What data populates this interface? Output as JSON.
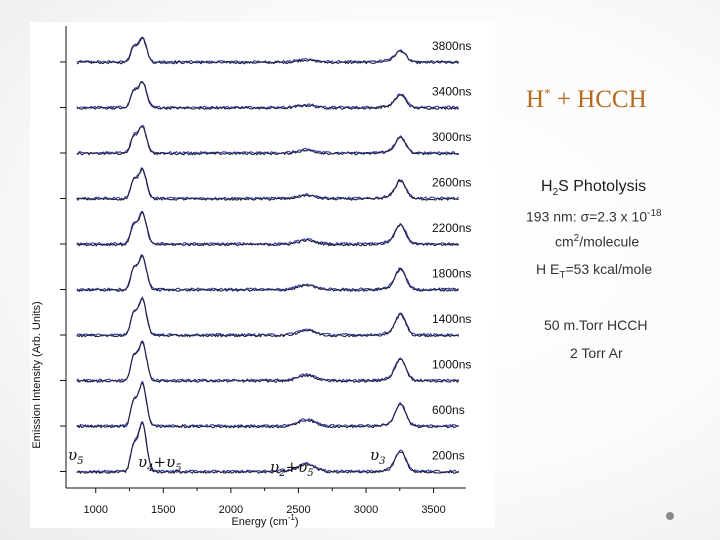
{
  "slide": {
    "title_main": "H",
    "title_sup": "*",
    "title_rest": " + HCCH",
    "photolysis_pre": "H",
    "photolysis_sub": "2",
    "photolysis_post": "S Photolysis",
    "cross_line1_pre": "193 nm: σ=2.3 x 10",
    "cross_line1_sup": "-18",
    "cross_line2_pre": "cm",
    "cross_line2_sup": "2",
    "cross_line2_post": "/molecule",
    "et_pre": "H E",
    "et_sub": "T",
    "et_post": "=53 kcal/mole",
    "pressure1": "50 m.Torr HCCH",
    "pressure2": "2 Torr Ar"
  },
  "chart_data": {
    "type": "line",
    "title": "",
    "xlabel": "Energy (cm",
    "xlabel_sup": "-1",
    "xlabel_close": ")",
    "ylabel": "Emission Intensity (Arb. Units)",
    "xlim": [
      780,
      3740
    ],
    "xticks": [
      1000,
      1500,
      2000,
      2500,
      3000,
      3500
    ],
    "xtick_labels": [
      "1000",
      "1500",
      "2000",
      "2500",
      "3000",
      "3500"
    ],
    "stacked": true,
    "series": [
      {
        "name": "3800ns",
        "peak_amplitudes": {
          "v5": 0.55,
          "v4_v5": 0.95,
          "v2_v5": 0.1,
          "v3": 0.45
        }
      },
      {
        "name": "3400ns",
        "peak_amplitudes": {
          "v5": 0.6,
          "v4_v5": 1.0,
          "v2_v5": 0.1,
          "v3": 0.5
        }
      },
      {
        "name": "3000ns",
        "peak_amplitudes": {
          "v5": 0.6,
          "v4_v5": 1.05,
          "v2_v5": 0.12,
          "v3": 0.6
        }
      },
      {
        "name": "2600ns",
        "peak_amplitudes": {
          "v5": 0.65,
          "v4_v5": 1.15,
          "v2_v5": 0.14,
          "v3": 0.7
        }
      },
      {
        "name": "2200ns",
        "peak_amplitudes": {
          "v5": 0.7,
          "v4_v5": 1.2,
          "v2_v5": 0.16,
          "v3": 0.75
        }
      },
      {
        "name": "1800ns",
        "peak_amplitudes": {
          "v5": 0.75,
          "v4_v5": 1.3,
          "v2_v5": 0.18,
          "v3": 0.8
        }
      },
      {
        "name": "1400ns",
        "peak_amplitudes": {
          "v5": 0.8,
          "v4_v5": 1.4,
          "v2_v5": 0.2,
          "v3": 0.8
        }
      },
      {
        "name": "1000ns",
        "peak_amplitudes": {
          "v5": 0.85,
          "v4_v5": 1.5,
          "v2_v5": 0.22,
          "v3": 0.85
        }
      },
      {
        "name": "600ns",
        "peak_amplitudes": {
          "v5": 0.9,
          "v4_v5": 1.65,
          "v2_v5": 0.25,
          "v3": 0.85
        }
      },
      {
        "name": "200ns",
        "peak_amplitudes": {
          "v5": 0.95,
          "v4_v5": 1.9,
          "v2_v5": 0.3,
          "v3": 0.8
        }
      }
    ],
    "bands": [
      {
        "id": "v5",
        "x": 1300,
        "label": "υ",
        "sub": "5"
      },
      {
        "id": "v4_v5",
        "x": 1340,
        "label": "υ",
        "sub": "4",
        "plus": "+υ",
        "sub2": "5"
      },
      {
        "id": "v2_v5",
        "x": 2560,
        "label": "υ",
        "sub": "2",
        "plus": "+υ",
        "sub2": "5"
      },
      {
        "id": "v3",
        "x": 3260,
        "label": "υ",
        "sub": "3"
      }
    ],
    "colors": {
      "trace_dark": "#1f2140",
      "trace_blue": "#3a3aa8",
      "axis": "#111111"
    }
  }
}
